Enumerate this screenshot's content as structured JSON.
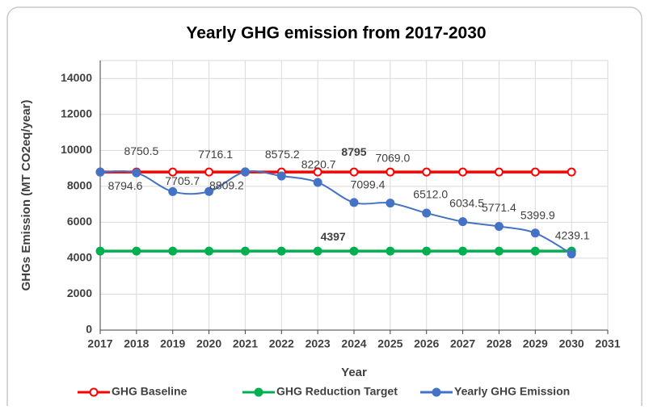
{
  "chart_data": {
    "type": "line",
    "title": "Yearly GHG emission from 2017-2030",
    "x_label": "Year",
    "y_label": "GHGs Emission (MT CO2eq/year)",
    "x": [
      2017,
      2018,
      2019,
      2020,
      2021,
      2022,
      2023,
      2024,
      2025,
      2026,
      2027,
      2028,
      2029,
      2030
    ],
    "xlim": [
      2017,
      2031
    ],
    "xticks": [
      2017,
      2018,
      2019,
      2020,
      2021,
      2022,
      2023,
      2024,
      2025,
      2026,
      2027,
      2028,
      2029,
      2030,
      2031
    ],
    "ylim": [
      0,
      15000
    ],
    "yticks": [
      0,
      2000,
      4000,
      6000,
      8000,
      10000,
      12000,
      14000
    ],
    "grid": true,
    "legend": "bottom",
    "series": [
      {
        "name": "GHG Baseline",
        "color": "#ff0000",
        "marker_fill": "#ffffff",
        "smooth": false,
        "values": [
          8795,
          8795,
          8795,
          8795,
          8795,
          8795,
          8795,
          8795,
          8795,
          8795,
          8795,
          8795,
          8795,
          8795
        ]
      },
      {
        "name": "GHG Reduction Target",
        "color": "#00b050",
        "marker_fill": "#00b050",
        "smooth": false,
        "values": [
          4397,
          4397,
          4397,
          4397,
          4397,
          4397,
          4397,
          4397,
          4397,
          4397,
          4397,
          4397,
          4397,
          4397
        ]
      },
      {
        "name": "Yearly GHG Emission",
        "color": "#4472c4",
        "marker_fill": "#4472c4",
        "smooth": true,
        "values": [
          8794.6,
          8750.5,
          7705.7,
          7716.1,
          8809.2,
          8575.2,
          8220.7,
          7099.4,
          7069.0,
          6512.0,
          6034.5,
          5771.4,
          5399.9,
          4239.1
        ],
        "value_labels": [
          "8794.6",
          "8750.5",
          "7705.7",
          "7716.1",
          "8809.2",
          "8575.2",
          "8220.7",
          "7099.4",
          "7069.0",
          "6512.0",
          "6034.5",
          "5771.4",
          "5399.9",
          "4239.1"
        ]
      }
    ],
    "annotations": [
      {
        "text": "8795",
        "x": 2024,
        "y": 8795
      },
      {
        "text": "4397",
        "x": 2023,
        "y": 4397
      }
    ]
  }
}
